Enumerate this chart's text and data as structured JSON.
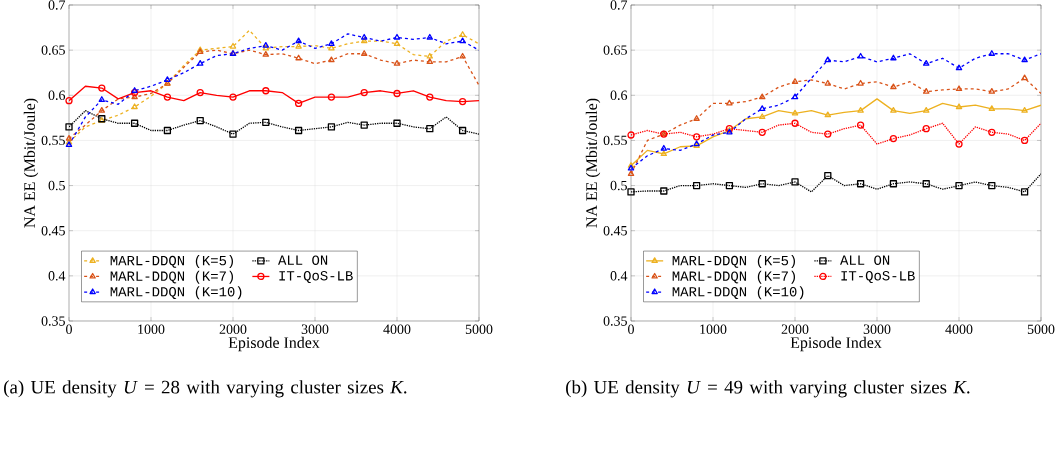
{
  "chart_data": [
    {
      "type": "line",
      "xlabel": "Episode Index",
      "ylabel": "NA EE (Mbit/Joule)",
      "annotations": [
        "(a) UE density *U* = 28 with varying cluster sizes *K*."
      ],
      "x": [
        0,
        200,
        400,
        600,
        800,
        1000,
        1200,
        1400,
        1600,
        1800,
        2000,
        2200,
        2400,
        2600,
        2800,
        3000,
        3200,
        3400,
        3600,
        3800,
        4000,
        4200,
        4400,
        4600,
        4800,
        5000
      ],
      "xlim": [
        0,
        5000
      ],
      "ylim": [
        0.35,
        0.7
      ],
      "xticks": [
        0,
        1000,
        2000,
        3000,
        4000,
        5000
      ],
      "yticks": [
        0.35,
        0.4,
        0.45,
        0.5,
        0.55,
        0.6,
        0.65,
        0.7
      ],
      "grid": true,
      "legend": "bottom left",
      "series": [
        {
          "name": "MARL-DDQN (K=5)",
          "color": "#edb120",
          "line_style": "dashed",
          "marker": "triangle",
          "values": [
            0.548,
            0.565,
            0.572,
            0.578,
            0.587,
            0.599,
            0.613,
            0.633,
            0.65,
            0.652,
            0.654,
            0.672,
            0.652,
            0.654,
            0.654,
            0.655,
            0.652,
            0.657,
            0.66,
            0.66,
            0.657,
            0.645,
            0.643,
            0.66,
            0.667,
            0.657
          ]
        },
        {
          "name": "ALL ON",
          "color": "#000000",
          "line_style": "dotted",
          "marker": "square",
          "values": [
            0.565,
            0.583,
            0.574,
            0.569,
            0.569,
            0.561,
            0.561,
            0.567,
            0.572,
            0.565,
            0.557,
            0.569,
            0.57,
            0.565,
            0.561,
            0.563,
            0.565,
            0.57,
            0.567,
            0.569,
            0.569,
            0.565,
            0.563,
            0.576,
            0.561,
            0.557
          ]
        },
        {
          "name": "MARL-DDQN (K=7)",
          "color": "#d95319",
          "line_style": "dashed",
          "marker": "triangle",
          "values": [
            0.552,
            0.567,
            0.583,
            0.596,
            0.598,
            0.602,
            0.613,
            0.631,
            0.648,
            0.65,
            0.646,
            0.65,
            0.645,
            0.646,
            0.641,
            0.635,
            0.639,
            0.646,
            0.646,
            0.639,
            0.635,
            0.639,
            0.637,
            0.637,
            0.643,
            0.611
          ]
        },
        {
          "name": "IT-QoS-LB",
          "color": "#ff0000",
          "line_style": "solid",
          "marker": "circle",
          "values": [
            0.594,
            0.61,
            0.608,
            0.596,
            0.603,
            0.605,
            0.598,
            0.594,
            0.603,
            0.6,
            0.598,
            0.605,
            0.605,
            0.603,
            0.591,
            0.598,
            0.598,
            0.598,
            0.603,
            0.605,
            0.602,
            0.605,
            0.598,
            0.594,
            0.593,
            0.594
          ]
        },
        {
          "name": "MARL-DDQN (K=10)",
          "color": "#0000ff",
          "line_style": "dashed",
          "marker": "triangle",
          "values": [
            0.545,
            0.576,
            0.595,
            0.59,
            0.605,
            0.61,
            0.617,
            0.625,
            0.635,
            0.644,
            0.646,
            0.652,
            0.655,
            0.65,
            0.66,
            0.652,
            0.657,
            0.668,
            0.664,
            0.66,
            0.664,
            0.662,
            0.664,
            0.657,
            0.66,
            0.65
          ]
        }
      ]
    },
    {
      "type": "line",
      "xlabel": "Episode Index",
      "ylabel": "NA EE (Mbit/Joule)",
      "annotations": [
        "(b) UE density *U* = 49 with varying cluster sizes *K*."
      ],
      "x": [
        0,
        200,
        400,
        600,
        800,
        1000,
        1200,
        1400,
        1600,
        1800,
        2000,
        2200,
        2400,
        2600,
        2800,
        3000,
        3200,
        3400,
        3600,
        3800,
        4000,
        4200,
        4400,
        4600,
        4800,
        5000
      ],
      "xlim": [
        0,
        5000
      ],
      "ylim": [
        0.35,
        0.7
      ],
      "xticks": [
        0,
        1000,
        2000,
        3000,
        4000,
        5000
      ],
      "yticks": [
        0.35,
        0.4,
        0.45,
        0.5,
        0.55,
        0.6,
        0.65,
        0.7
      ],
      "grid": true,
      "legend": "bottom left",
      "series": [
        {
          "name": "MARL-DDQN (K=5)",
          "color": "#edb120",
          "line_style": "solid",
          "marker": "triangle",
          "values": [
            0.522,
            0.539,
            0.535,
            0.543,
            0.544,
            0.554,
            0.561,
            0.574,
            0.576,
            0.583,
            0.58,
            0.583,
            0.578,
            0.581,
            0.583,
            0.596,
            0.583,
            0.58,
            0.583,
            0.591,
            0.587,
            0.589,
            0.585,
            0.585,
            0.583,
            0.589
          ]
        },
        {
          "name": "ALL ON",
          "color": "#000000",
          "line_style": "dotted",
          "marker": "square",
          "values": [
            0.493,
            0.494,
            0.494,
            0.5,
            0.5,
            0.502,
            0.5,
            0.498,
            0.502,
            0.5,
            0.504,
            0.493,
            0.511,
            0.5,
            0.502,
            0.496,
            0.502,
            0.504,
            0.502,
            0.496,
            0.5,
            0.504,
            0.5,
            0.498,
            0.493,
            0.513
          ]
        },
        {
          "name": "MARL-DDQN (K=7)",
          "color": "#d95319",
          "line_style": "dashed",
          "marker": "triangle",
          "values": [
            0.513,
            0.55,
            0.557,
            0.567,
            0.574,
            0.591,
            0.591,
            0.593,
            0.598,
            0.609,
            0.615,
            0.617,
            0.613,
            0.607,
            0.613,
            0.615,
            0.609,
            0.615,
            0.604,
            0.606,
            0.607,
            0.607,
            0.604,
            0.607,
            0.619,
            0.602
          ]
        },
        {
          "name": "IT-QoS-LB",
          "color": "#ff0000",
          "line_style": "dotted",
          "marker": "circle",
          "values": [
            0.556,
            0.561,
            0.557,
            0.559,
            0.554,
            0.557,
            0.563,
            0.561,
            0.559,
            0.567,
            0.569,
            0.559,
            0.557,
            0.563,
            0.567,
            0.546,
            0.552,
            0.556,
            0.563,
            0.569,
            0.546,
            0.565,
            0.559,
            0.557,
            0.55,
            0.569
          ]
        },
        {
          "name": "MARL-DDQN (K=10)",
          "color": "#0000ff",
          "line_style": "dashed",
          "marker": "triangle",
          "values": [
            0.519,
            0.533,
            0.541,
            0.539,
            0.546,
            0.556,
            0.559,
            0.574,
            0.585,
            0.589,
            0.598,
            0.619,
            0.639,
            0.637,
            0.643,
            0.637,
            0.641,
            0.646,
            0.635,
            0.641,
            0.63,
            0.641,
            0.646,
            0.646,
            0.639,
            0.646
          ]
        }
      ]
    }
  ]
}
